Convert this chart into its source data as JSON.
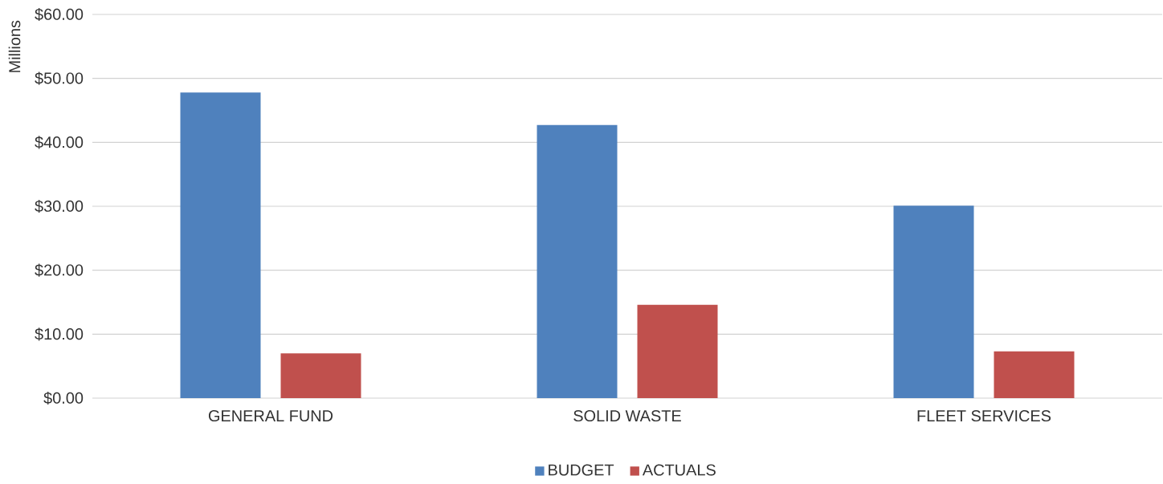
{
  "chart_data": {
    "type": "bar",
    "ylabel": "Millions",
    "categories": [
      "GENERAL FUND",
      "SOLID WASTE",
      "FLEET SERVICES"
    ],
    "series": [
      {
        "name": "BUDGET",
        "color": "#4f81bd",
        "values": [
          47.8,
          42.7,
          30.1
        ]
      },
      {
        "name": "ACTUALS",
        "color": "#c0504d",
        "values": [
          7.0,
          14.6,
          7.3
        ]
      }
    ],
    "ylim": [
      0,
      60
    ],
    "yticks": [
      {
        "value": 0,
        "label": "$0.00"
      },
      {
        "value": 10,
        "label": "$10.00"
      },
      {
        "value": 20,
        "label": "$20.00"
      },
      {
        "value": 30,
        "label": "$30.00"
      },
      {
        "value": 40,
        "label": "$40.00"
      },
      {
        "value": 50,
        "label": "$50.00"
      },
      {
        "value": 60,
        "label": "$60.00"
      }
    ],
    "grid": "y",
    "legend": "bottom"
  }
}
